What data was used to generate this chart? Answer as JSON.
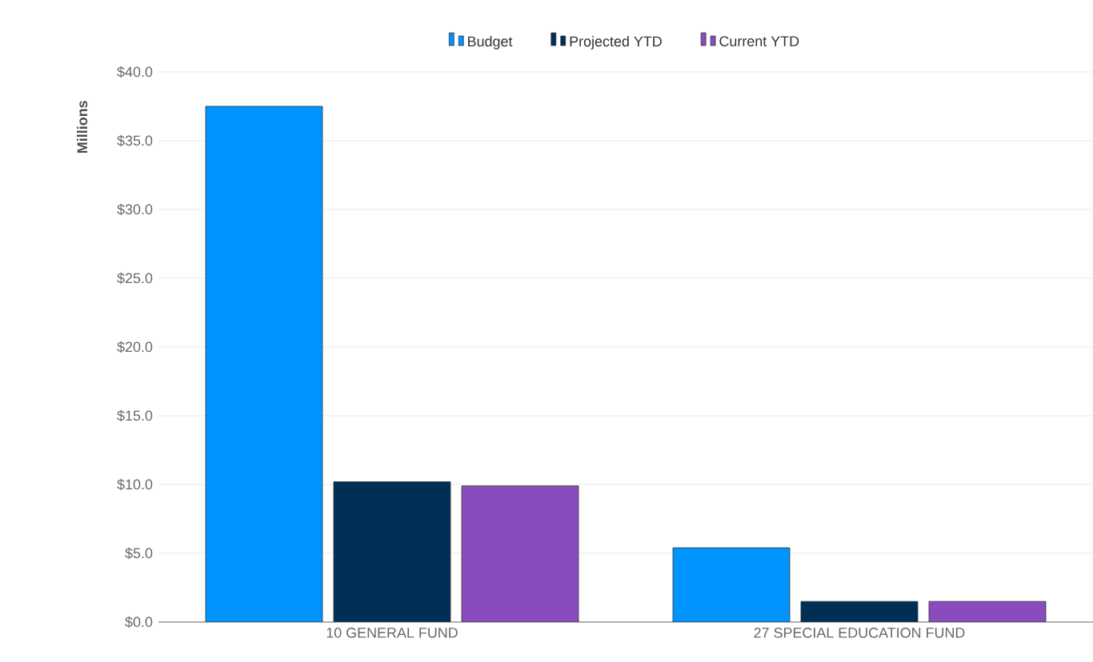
{
  "chart_data": {
    "type": "bar",
    "ylabel": "Millions",
    "categories": [
      "10 GENERAL FUND",
      "27 SPECIAL EDUCATION FUND"
    ],
    "series": [
      {
        "name": "Budget",
        "color": "#0094fe",
        "values": [
          37.5,
          5.4
        ]
      },
      {
        "name": "Projected YTD",
        "color": "#002f56",
        "values": [
          10.2,
          1.5
        ]
      },
      {
        "name": "Current YTD",
        "color": "#8a4bbd",
        "values": [
          9.9,
          1.5
        ]
      }
    ],
    "ylim": [
      0,
      40
    ],
    "yticks": [
      {
        "value": 0,
        "label": "$0.0"
      },
      {
        "value": 5,
        "label": "$5.0"
      },
      {
        "value": 10,
        "label": "$10.0"
      },
      {
        "value": 15,
        "label": "$15.0"
      },
      {
        "value": 20,
        "label": "$20.0"
      },
      {
        "value": 25,
        "label": "$25.0"
      },
      {
        "value": 30,
        "label": "$30.0"
      },
      {
        "value": 35,
        "label": "$35.0"
      },
      {
        "value": 40,
        "label": "$40.0"
      }
    ],
    "grid": "y",
    "legend": "top"
  }
}
